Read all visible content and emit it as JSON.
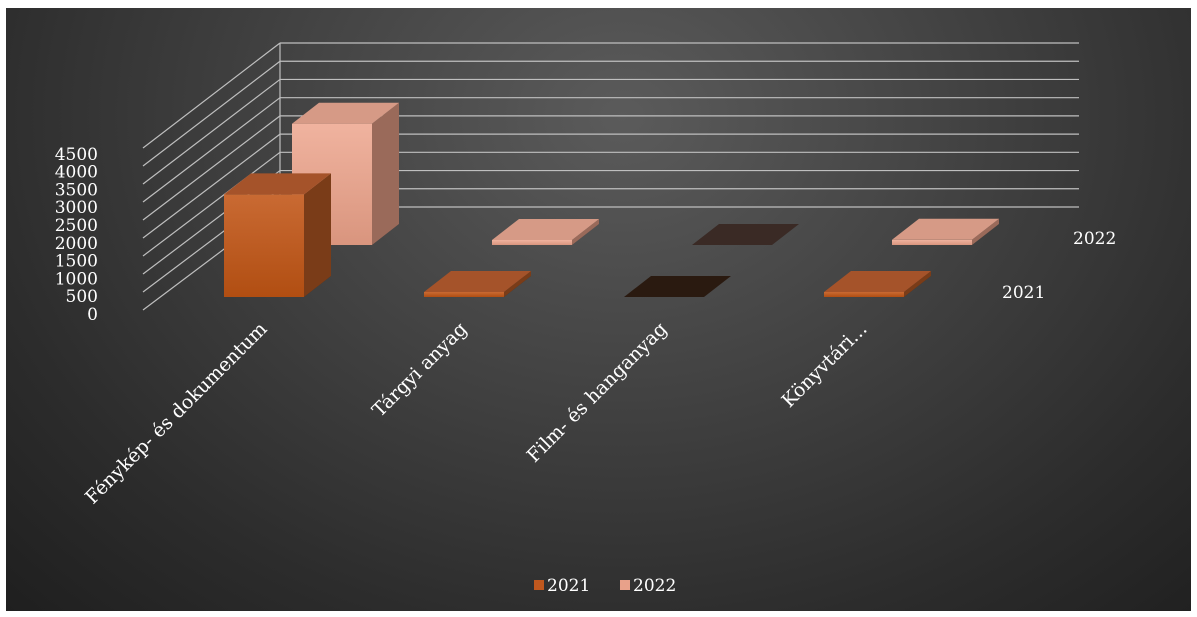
{
  "chart_data": {
    "type": "bar",
    "categories": [
      "Fénykép- és dokumentum",
      "Tárgyi anyag",
      "Film- és hanganyag",
      "Könyvtári..."
    ],
    "series": [
      {
        "name": "2021",
        "values": [
          3550,
          120,
          0,
          100
        ]
      },
      {
        "name": "2022",
        "values": [
          4200,
          30,
          0,
          180
        ]
      }
    ],
    "depth_labels": [
      "2021",
      "2022"
    ],
    "y_ticks": [
      "0",
      "500",
      "1000",
      "1500",
      "2000",
      "2500",
      "3000",
      "3500",
      "4000",
      "4500"
    ],
    "ylim": [
      0,
      4500
    ],
    "title": "",
    "xlabel": "",
    "ylabel": "",
    "legend": {
      "position": "bottom",
      "entries": [
        "2021",
        "2022"
      ]
    },
    "grid": true,
    "colors": {
      "series_2021": "#c0581e",
      "series_2022": "#e8a18a",
      "empty_2021": "#2a1a10",
      "empty_2022": "#3a2a25",
      "grid": "#bfbfbf"
    }
  }
}
